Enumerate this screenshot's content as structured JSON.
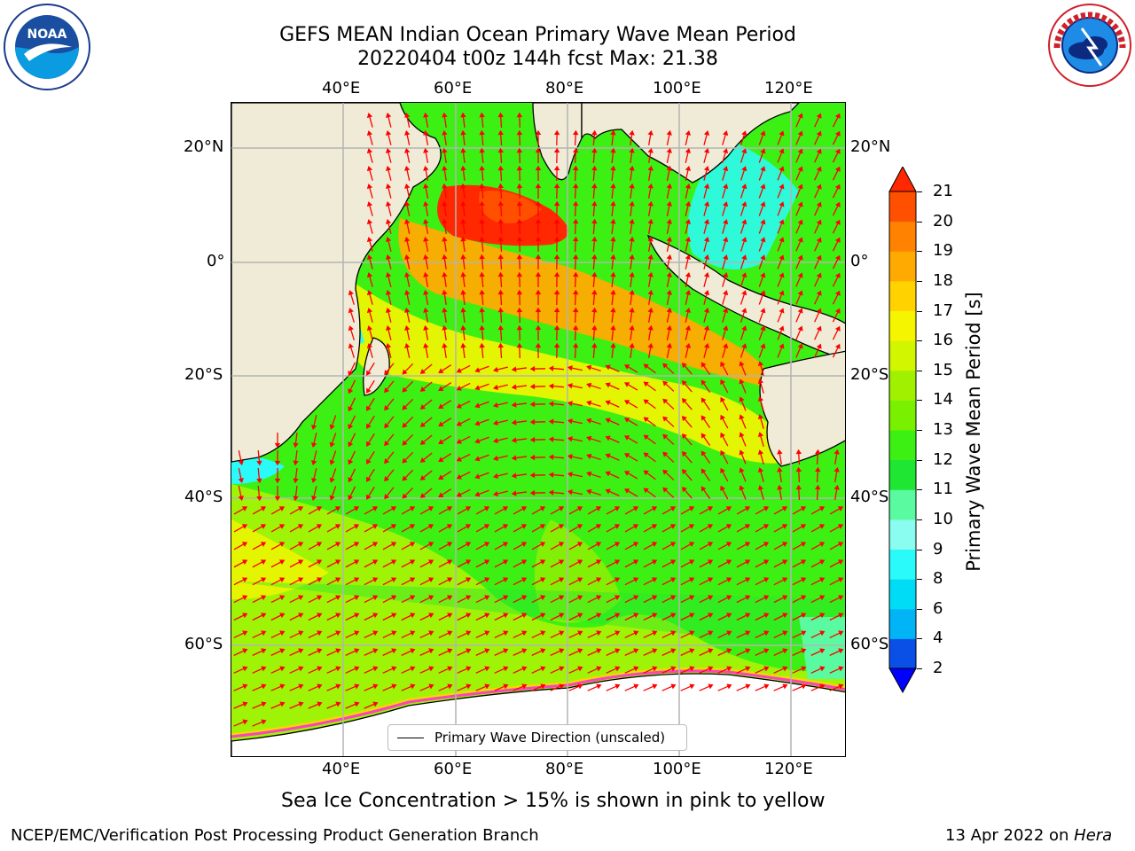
{
  "title": {
    "line1": "GEFS MEAN Indian Ocean Primary Wave Mean Period",
    "line2": "20220404 t00z 144h fcst   Max: 21.38"
  },
  "logos": {
    "left": {
      "text": "NOAA",
      "ring_text": "NATIONAL OCEANIC AND ATMOSPHERIC ADMINISTRATION · U.S. DEPARTMENT OF COMMERCE",
      "icon": "noaa-logo"
    },
    "right": {
      "text": "NATIONAL WEATHER SERVICE",
      "icon": "nws-logo"
    }
  },
  "axes": {
    "lon_ticks_top": [
      "40°E",
      "60°E",
      "80°E",
      "100°E",
      "120°E"
    ],
    "lon_ticks_bottom": [
      "40°E",
      "60°E",
      "80°E",
      "100°E",
      "120°E"
    ],
    "lat_ticks_left": [
      "20°N",
      "0°",
      "20°S",
      "40°S",
      "60°S"
    ],
    "lat_ticks_right": [
      "20°N",
      "0°",
      "20°S",
      "40°S",
      "60°S"
    ]
  },
  "legend": {
    "label": "Primary Wave Direction (unscaled)"
  },
  "colorbar": {
    "title": "Primary Wave Mean Period [s]",
    "ticks": [
      "2",
      "4",
      "6",
      "8",
      "9",
      "10",
      "11",
      "12",
      "13",
      "14",
      "15",
      "16",
      "17",
      "18",
      "19",
      "20",
      "21"
    ],
    "colors": [
      "#0a50e6",
      "#00b4f5",
      "#00dcf5",
      "#2bfafa",
      "#8bfcf0",
      "#5afaa0",
      "#1ee632",
      "#3cf014",
      "#78f000",
      "#a0f000",
      "#d2f500",
      "#f5f500",
      "#ffd200",
      "#ffaa00",
      "#ff8200",
      "#ff5000",
      "#ff2800"
    ]
  },
  "footer": {
    "sea_ice": "Sea Ice Concentration > 15% is shown in pink to yellow",
    "credit_left": "NCEP/EMC/Verification Post Processing Product Generation Branch",
    "credit_right_date": "13 Apr 2022 on ",
    "credit_right_host": "Hera"
  }
}
